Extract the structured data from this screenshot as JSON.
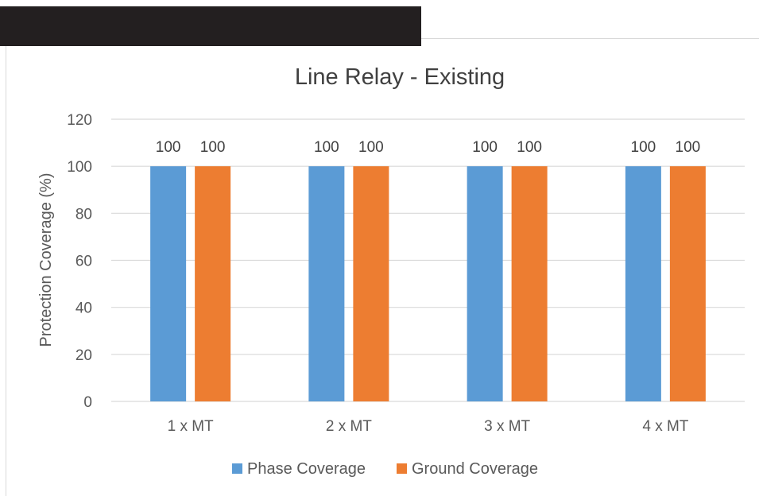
{
  "chart_data": {
    "type": "bar",
    "title": "Line Relay - Existing",
    "xlabel": "",
    "ylabel": "Protection Coverage (%)",
    "categories": [
      "1 x MT",
      "2 x MT",
      "3 x MT",
      "4 x MT"
    ],
    "series": [
      {
        "name": "Phase Coverage",
        "values": [
          100,
          100,
          100,
          100
        ],
        "color": "#5b9bd5"
      },
      {
        "name": "Ground Coverage",
        "values": [
          100,
          100,
          100,
          100
        ],
        "color": "#ed7d31"
      }
    ],
    "ylim": [
      0,
      120
    ],
    "yticks": [
      0,
      20,
      40,
      60,
      80,
      100,
      120
    ],
    "grid": true,
    "legend": "bottom",
    "data_labels": true
  }
}
